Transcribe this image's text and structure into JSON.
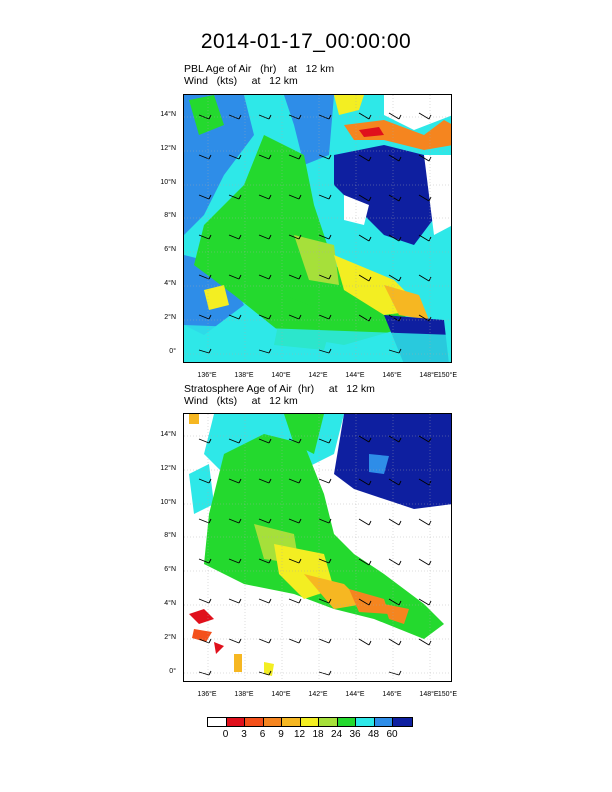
{
  "page_title": "2014-01-17_00:00:00",
  "panels": [
    {
      "id": "pbl",
      "title_line1": "PBL Age of Air   (hr)    at   12 km",
      "title_line2": "Wind   (kts)     at   12 km"
    },
    {
      "id": "strat",
      "title_line1": "Stratosphere Age of Air  (hr)     at   12 km",
      "title_line2": "Wind   (kts)     at   12 km"
    }
  ],
  "axes": {
    "lat_ticks": [
      "14°N",
      "12°N",
      "10°N",
      "8°N",
      "6°N",
      "4°N",
      "2°N",
      "0°"
    ],
    "lon_ticks": [
      "136°E",
      "138°E",
      "140°E",
      "142°E",
      "144°E",
      "146°E",
      "148°E",
      "150°E"
    ]
  },
  "colorbar": {
    "labels": [
      "0",
      "3",
      "6",
      "9",
      "12",
      "18",
      "24",
      "36",
      "48",
      "60"
    ],
    "colors": [
      "#ffffff",
      "#e0101c",
      "#f4501a",
      "#f5851f",
      "#f6b722",
      "#f3ee22",
      "#a6e03a",
      "#24d92e",
      "#2ee8e8",
      "#2e8de8",
      "#0e1fa0"
    ]
  }
}
